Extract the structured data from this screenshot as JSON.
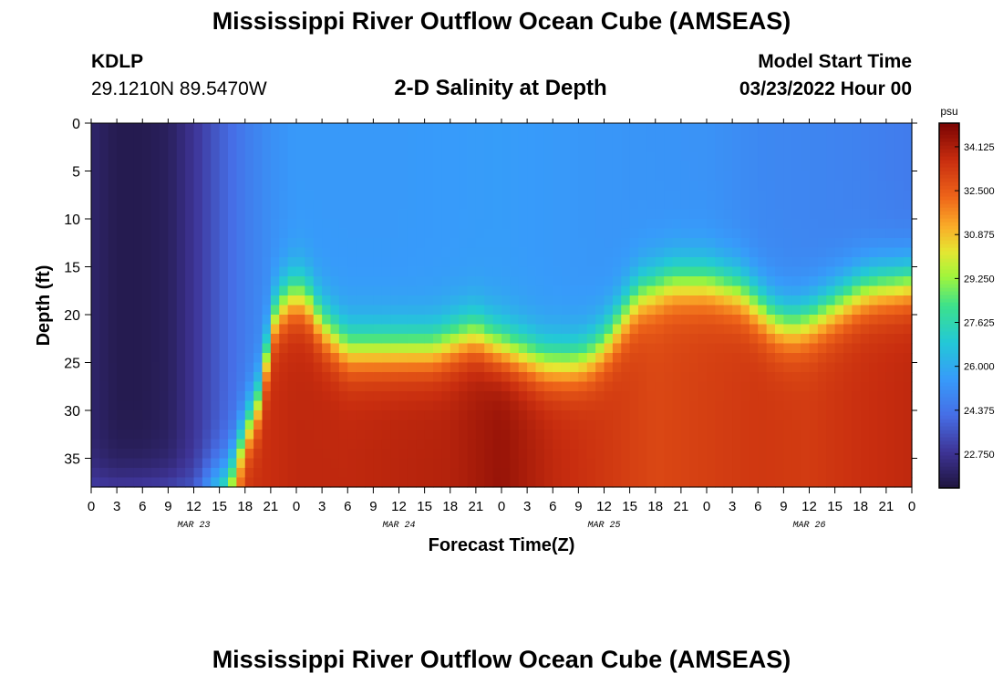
{
  "header": {
    "title": "Mississippi River Outflow Ocean Cube (AMSEAS)",
    "station_id": "KDLP",
    "station_coords": "29.1210N  89.5470W",
    "plot_title": "2-D Salinity at Depth",
    "model_start_label": "Model Start Time",
    "model_start_value": "03/23/2022 Hour 00"
  },
  "footer": {
    "title": "Mississippi River Outflow Ocean Cube (AMSEAS)"
  },
  "chart_data": {
    "type": "heatmap",
    "title": "2-D Salinity at Depth",
    "xlabel": "Forecast Time(Z)",
    "ylabel": "Depth (ft)",
    "x_range_hours": [
      0,
      96
    ],
    "ylim": [
      0,
      38
    ],
    "y_inverted": true,
    "x_tick_labels": [
      "0",
      "3",
      "6",
      "9",
      "12",
      "15",
      "18",
      "21",
      "0",
      "3",
      "6",
      "9",
      "12",
      "15",
      "18",
      "21",
      "0",
      "3",
      "6",
      "9",
      "12",
      "15",
      "18",
      "21",
      "0",
      "3",
      "6",
      "9",
      "12",
      "15",
      "18",
      "21",
      "0"
    ],
    "date_labels": [
      {
        "label": "MAR 23",
        "hour": 12
      },
      {
        "label": "MAR 24",
        "hour": 36
      },
      {
        "label": "MAR 25",
        "hour": 60
      },
      {
        "label": "MAR 26",
        "hour": 84
      }
    ],
    "y_ticks": [
      0,
      5,
      10,
      15,
      20,
      25,
      30,
      35
    ],
    "colorbar": {
      "unit": "psu",
      "ticks": [
        "34.125",
        "32.500",
        "30.875",
        "29.250",
        "27.625",
        "26.000",
        "24.375",
        "22.750"
      ],
      "tick_values": [
        34.125,
        32.5,
        30.875,
        29.25,
        27.625,
        26.0,
        24.375,
        22.75
      ],
      "min": 21.5,
      "max": 35.0
    },
    "fields": {
      "halocline_depth_ft": {
        "hours": [
          0,
          12,
          16,
          20,
          21,
          23,
          25,
          27,
          30,
          33,
          36,
          40,
          43,
          45,
          47,
          50,
          53,
          56,
          58,
          60,
          64,
          68,
          72,
          76,
          78,
          80,
          82,
          84,
          86,
          88,
          90,
          92,
          94,
          96
        ],
        "values": [
          38,
          38,
          37,
          28,
          21,
          18,
          18,
          21,
          23.5,
          23.5,
          23.5,
          23.5,
          22.5,
          22,
          23,
          24,
          25,
          25,
          24.5,
          23,
          18,
          16.5,
          16.5,
          17.5,
          19,
          20.5,
          21,
          20.5,
          19.5,
          18.5,
          17.5,
          17,
          16.8,
          16.5
        ]
      },
      "bottom_salinity_psu": {
        "hours": [
          0,
          12,
          18,
          24,
          30,
          36,
          42,
          48,
          54,
          60,
          66,
          72,
          78,
          84,
          90,
          96
        ],
        "values": [
          24,
          24.5,
          33.5,
          33.8,
          33.8,
          33.9,
          34.0,
          34.5,
          33.8,
          33.4,
          33.0,
          33.2,
          33.4,
          33.3,
          33.6,
          33.8
        ]
      },
      "surface_salinity_psu": {
        "hours": [
          0,
          3,
          6,
          9,
          12,
          15,
          18,
          21,
          24,
          30,
          36,
          48,
          60,
          72,
          78,
          84,
          90,
          96
        ],
        "values": [
          22.2,
          21.8,
          21.8,
          22.0,
          22.8,
          23.8,
          24.6,
          25.2,
          25.5,
          25.5,
          25.5,
          25.6,
          25.4,
          25.3,
          25.0,
          24.9,
          24.8,
          24.6
        ]
      }
    }
  }
}
